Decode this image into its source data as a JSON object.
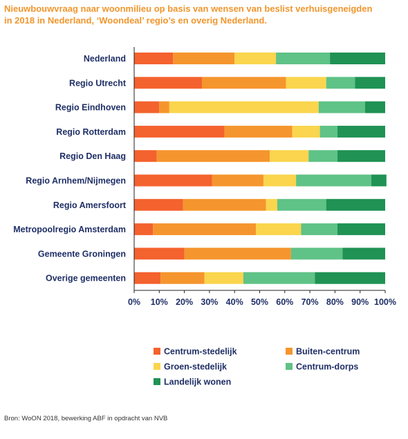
{
  "title_line1": "Nieuwbouwvraag naar woonmilieu op basis van wensen van beslist verhuisgeneigden",
  "title_line2": "in 2018 in Nederland, ‘Woondeal’ regio’s en overig Nederland.",
  "source": "Bron: WoON 2018, bewerking ABF in opdracht van NVB",
  "colors": {
    "Centrum-stedelijk": "#f4622e",
    "Buiten-centrum": "#f5952d",
    "Groen-stedelijk": "#fad54d",
    "Centrum-dorps": "#5fc286",
    "Landelijk wonen": "#1f9254"
  },
  "chart_data": {
    "type": "bar",
    "orientation": "horizontal",
    "stacked": true,
    "categories": [
      "Nederland",
      "Regio Utrecht",
      "Regio Eindhoven",
      "Regio Rotterdam",
      "Regio Den Haag",
      "Regio Arnhem/Nijmegen",
      "Regio Amersfoort",
      "Metropoolregio Amsterdam",
      "Gemeente Groningen",
      "Overige gemeenten"
    ],
    "series": [
      {
        "name": "Centrum-stedelijk",
        "values": [
          15.5,
          27,
          10,
          36,
          9,
          31,
          19.5,
          7.5,
          20,
          10.5
        ]
      },
      {
        "name": "Buiten-centrum",
        "values": [
          24.5,
          33.5,
          4,
          27,
          45,
          20.5,
          33,
          41,
          42.5,
          17.5
        ]
      },
      {
        "name": "Groen-stedelijk",
        "values": [
          16.5,
          16,
          59.5,
          11,
          15.5,
          13,
          4.5,
          18,
          0,
          15.5
        ]
      },
      {
        "name": "Centrum-dorps",
        "values": [
          21.5,
          11.5,
          18.5,
          7,
          11.5,
          30,
          19.5,
          14.5,
          20.5,
          28.5
        ]
      },
      {
        "name": "Landelijk wonen",
        "values": [
          22,
          12,
          8,
          19,
          19,
          6,
          23.5,
          19,
          17,
          28
        ]
      }
    ],
    "x_ticks": [
      "0%",
      "10%",
      "20%",
      "30%",
      "40%",
      "50%",
      "60%",
      "70%",
      "80%",
      "90%",
      "100%"
    ],
    "xlim": [
      0,
      100
    ],
    "grid": false,
    "legend_position": "bottom"
  }
}
